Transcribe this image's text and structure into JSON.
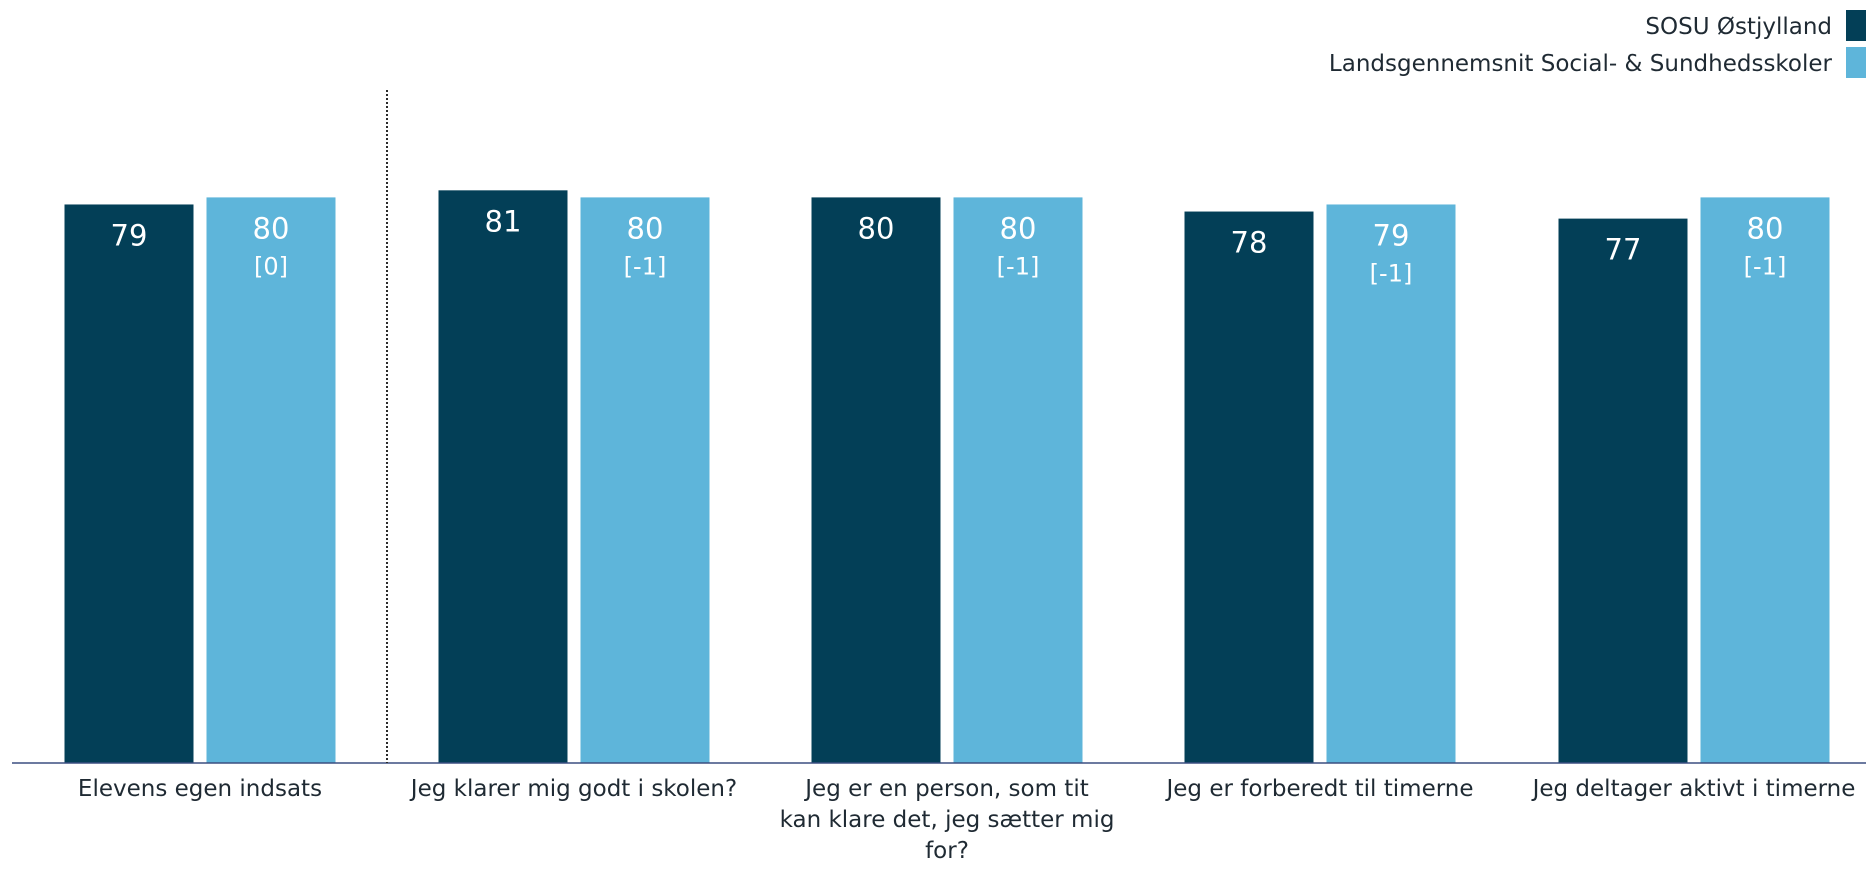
{
  "chart_data": {
    "type": "bar",
    "categories": [
      "Elevens egen indsats",
      "Jeg klarer mig godt i skolen?",
      "Jeg er en person, som tit kan klare det, jeg sætter mig for?",
      "Jeg er forberedt til timerne",
      "Jeg deltager aktivt i timerne"
    ],
    "category_lines": [
      [
        "Elevens egen indsats"
      ],
      [
        "Jeg klarer mig godt i skolen?"
      ],
      [
        "Jeg er en person, som tit",
        "kan klare det, jeg sætter mig",
        "for?"
      ],
      [
        "Jeg er forberedt til timerne"
      ],
      [
        "Jeg deltager aktivt i timerne"
      ]
    ],
    "series": [
      {
        "name": "SOSU Østjylland",
        "color": "#033f57",
        "values": [
          79,
          81,
          80,
          78,
          77
        ],
        "value_labels": [
          "79",
          "81",
          "80",
          "78",
          "77"
        ]
      },
      {
        "name": "Landsgennemsnit Social- & Sundhedsskoler",
        "color": "#5eb5da",
        "values": [
          80,
          80,
          80,
          79,
          80
        ],
        "value_labels": [
          "80",
          "80",
          "80",
          "79",
          "80"
        ],
        "change_labels": [
          "[0]",
          "[-1]",
          "[-1]",
          "[-1]",
          "[-1]"
        ]
      }
    ],
    "ylim": [
      0,
      100
    ],
    "grid": false,
    "legend": "top-right",
    "separator_after_category": 0,
    "xlabel": "",
    "ylabel": ""
  }
}
